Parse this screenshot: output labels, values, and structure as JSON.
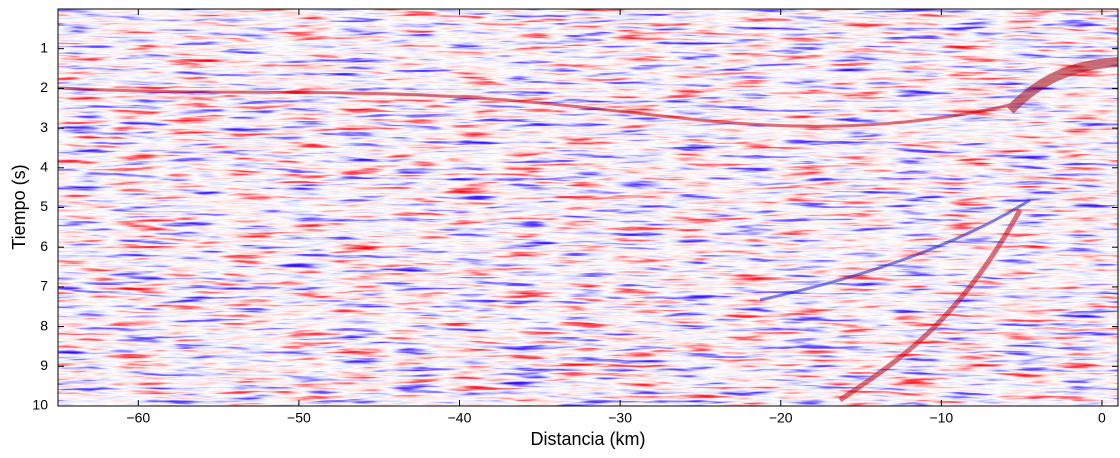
{
  "chart_data": {
    "type": "heatmap",
    "x_label": "Distancia (km)",
    "y_label": "Tiempo (s)",
    "xlim": [
      -65,
      1
    ],
    "ylim": [
      10,
      0
    ],
    "xticks": [
      {
        "value": -60,
        "label": "−60"
      },
      {
        "value": -50,
        "label": "−50"
      },
      {
        "value": -40,
        "label": "−40"
      },
      {
        "value": -30,
        "label": "−30"
      },
      {
        "value": -20,
        "label": "−20"
      },
      {
        "value": -10,
        "label": "−10"
      },
      0
    ],
    "yticks": [
      1,
      2,
      3,
      4,
      5,
      6,
      7,
      8,
      9,
      10
    ]
  }
}
